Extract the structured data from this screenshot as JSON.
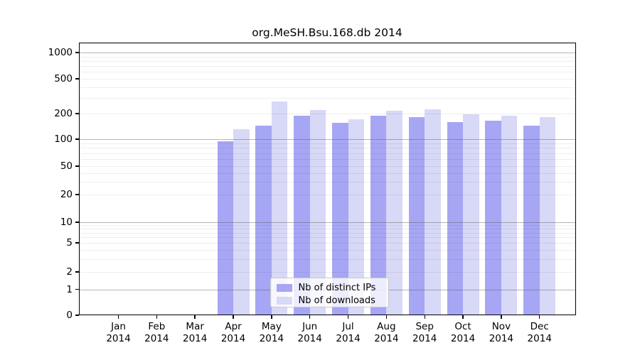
{
  "chart_data": {
    "type": "bar",
    "title": "org.MeSH.Bsu.168.db 2014",
    "year": "2014",
    "categories": [
      "Jan",
      "Feb",
      "Mar",
      "Apr",
      "May",
      "Jun",
      "Jul",
      "Aug",
      "Sep",
      "Oct",
      "Nov",
      "Dec"
    ],
    "x_tick_labels": [
      [
        "Jan",
        "2014"
      ],
      [
        "Feb",
        "2014"
      ],
      [
        "Mar",
        "2014"
      ],
      [
        "Apr",
        "2014"
      ],
      [
        "May",
        "2014"
      ],
      [
        "Jun",
        "2014"
      ],
      [
        "Jul",
        "2014"
      ],
      [
        "Aug",
        "2014"
      ],
      [
        "Sep",
        "2014"
      ],
      [
        "Oct",
        "2014"
      ],
      [
        "Nov",
        "2014"
      ],
      [
        "Dec",
        "2014"
      ]
    ],
    "series": [
      {
        "name": "Nb of distinct IPs",
        "color": "#a6a6f4",
        "values": [
          0,
          0,
          0,
          95,
          145,
          190,
          155,
          190,
          180,
          160,
          165,
          145
        ]
      },
      {
        "name": "Nb of downloads",
        "color": "#d8d8f7",
        "values": [
          0,
          0,
          0,
          130,
          275,
          220,
          170,
          215,
          225,
          195,
          190,
          180
        ]
      }
    ],
    "y_scale": "symlog",
    "y_ticks": [
      0,
      1,
      2,
      5,
      10,
      20,
      50,
      100,
      200,
      500,
      1000
    ],
    "y_minor_gridlines": [
      2,
      3,
      4,
      5,
      6,
      7,
      8,
      9,
      20,
      30,
      40,
      50,
      60,
      70,
      80,
      90,
      200,
      300,
      400,
      500,
      600,
      700,
      800,
      900
    ],
    "y_decade_gridlines": [
      1,
      10,
      100,
      1000
    ],
    "ylim": [
      0,
      1300
    ],
    "grid": true,
    "legend_position": "lower center"
  },
  "colors": {
    "background": "#ffffff",
    "axis": "#000000",
    "bar_distinct_ips": "#a6a6f4",
    "bar_downloads": "#d8d8f7",
    "grid_decade": "#ababab",
    "grid_minor": "#ededed",
    "legend_border": "#cbcbcb"
  }
}
